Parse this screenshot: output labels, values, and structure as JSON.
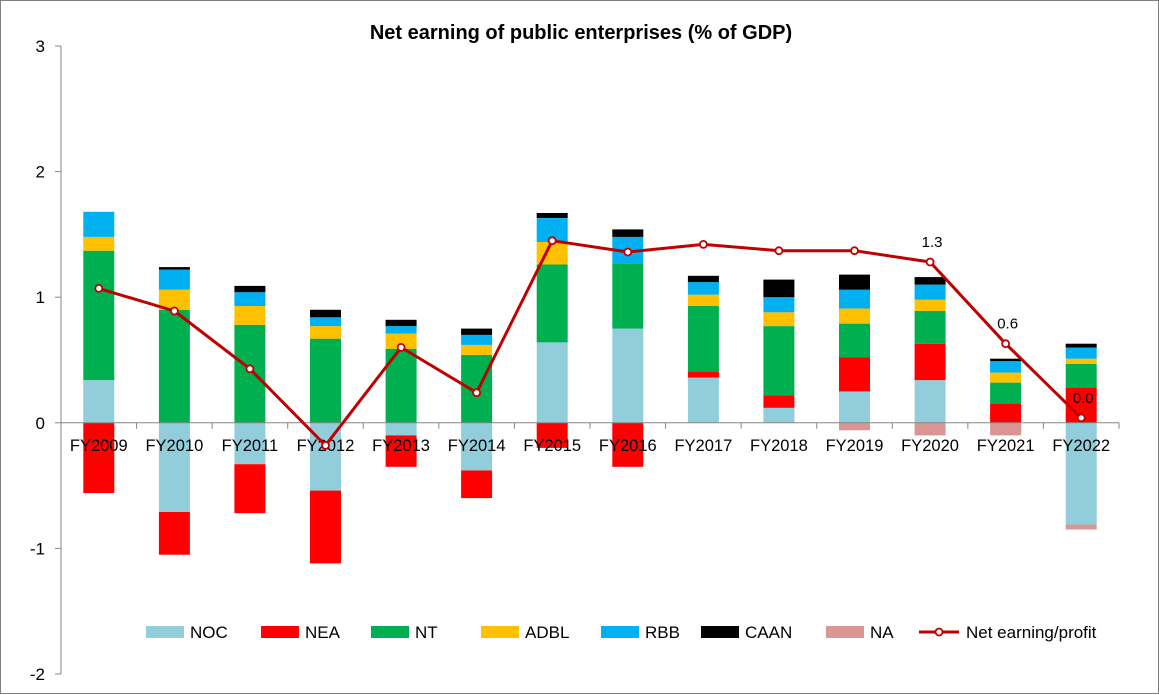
{
  "chart_data": {
    "type": "bar",
    "stacked": true,
    "title": "Net earning of public enterprises (% of GDP)",
    "xlabel": "",
    "ylabel": "",
    "ylim": [
      -2,
      3
    ],
    "yticks": [
      "-2",
      "-1",
      "0",
      "1",
      "2",
      "3"
    ],
    "ytick_values": [
      -2,
      -1,
      0,
      1,
      2,
      3
    ],
    "categories": [
      "FY2009",
      "FY2010",
      "FY2011",
      "FY2012",
      "FY2013",
      "FY2014",
      "FY2015",
      "FY2016",
      "FY2017",
      "FY2018",
      "FY2019",
      "FY2020",
      "FY2021",
      "FY2022"
    ],
    "series": [
      {
        "name": "NOC",
        "color": "#92CDDC",
        "values": [
          0.34,
          -0.71,
          -0.33,
          -0.54,
          -0.1,
          -0.38,
          0.64,
          0.75,
          0.36,
          0.12,
          0.25,
          0.34,
          0.0,
          -0.81
        ]
      },
      {
        "name": "NEA",
        "color": "#FF0000",
        "values": [
          -0.56,
          -0.34,
          -0.39,
          -0.58,
          -0.25,
          -0.22,
          -0.2,
          -0.35,
          0.05,
          0.1,
          0.27,
          0.29,
          0.15,
          0.28
        ]
      },
      {
        "name": "NT",
        "color": "#00B050",
        "values": [
          1.03,
          0.9,
          0.78,
          0.67,
          0.59,
          0.54,
          0.62,
          0.52,
          0.52,
          0.55,
          0.27,
          0.26,
          0.17,
          0.19
        ]
      },
      {
        "name": "ADBL",
        "color": "#FFC000",
        "values": [
          0.11,
          0.16,
          0.15,
          0.1,
          0.12,
          0.08,
          0.18,
          0.0,
          0.09,
          0.11,
          0.12,
          0.09,
          0.08,
          0.04
        ]
      },
      {
        "name": "RBB",
        "color": "#00B0F0",
        "values": [
          0.2,
          0.16,
          0.11,
          0.07,
          0.06,
          0.08,
          0.19,
          0.21,
          0.1,
          0.12,
          0.15,
          0.12,
          0.09,
          0.09
        ]
      },
      {
        "name": "CAAN",
        "color": "#000000",
        "values": [
          0.0,
          0.02,
          0.05,
          0.06,
          0.05,
          0.05,
          0.04,
          0.06,
          0.05,
          0.14,
          0.12,
          0.06,
          0.02,
          0.03
        ]
      },
      {
        "name": "NA",
        "color": "#D99694",
        "values": [
          0.0,
          0.0,
          0.0,
          0.0,
          0.0,
          0.0,
          0.0,
          0.0,
          0.0,
          0.0,
          -0.06,
          -0.1,
          -0.1,
          -0.04
        ]
      }
    ],
    "line": {
      "name": "Net earning/profit",
      "color": "#C00000",
      "values": [
        1.07,
        0.89,
        0.43,
        -0.18,
        0.6,
        0.24,
        1.45,
        1.36,
        1.42,
        1.37,
        1.37,
        1.28,
        0.63,
        0.04
      ]
    },
    "data_labels": [
      {
        "category": "FY2020",
        "text": "1.3"
      },
      {
        "category": "FY2021",
        "text": "0.6"
      },
      {
        "category": "FY2022",
        "text": "0.0"
      }
    ],
    "legend_position": "bottom-inside"
  }
}
